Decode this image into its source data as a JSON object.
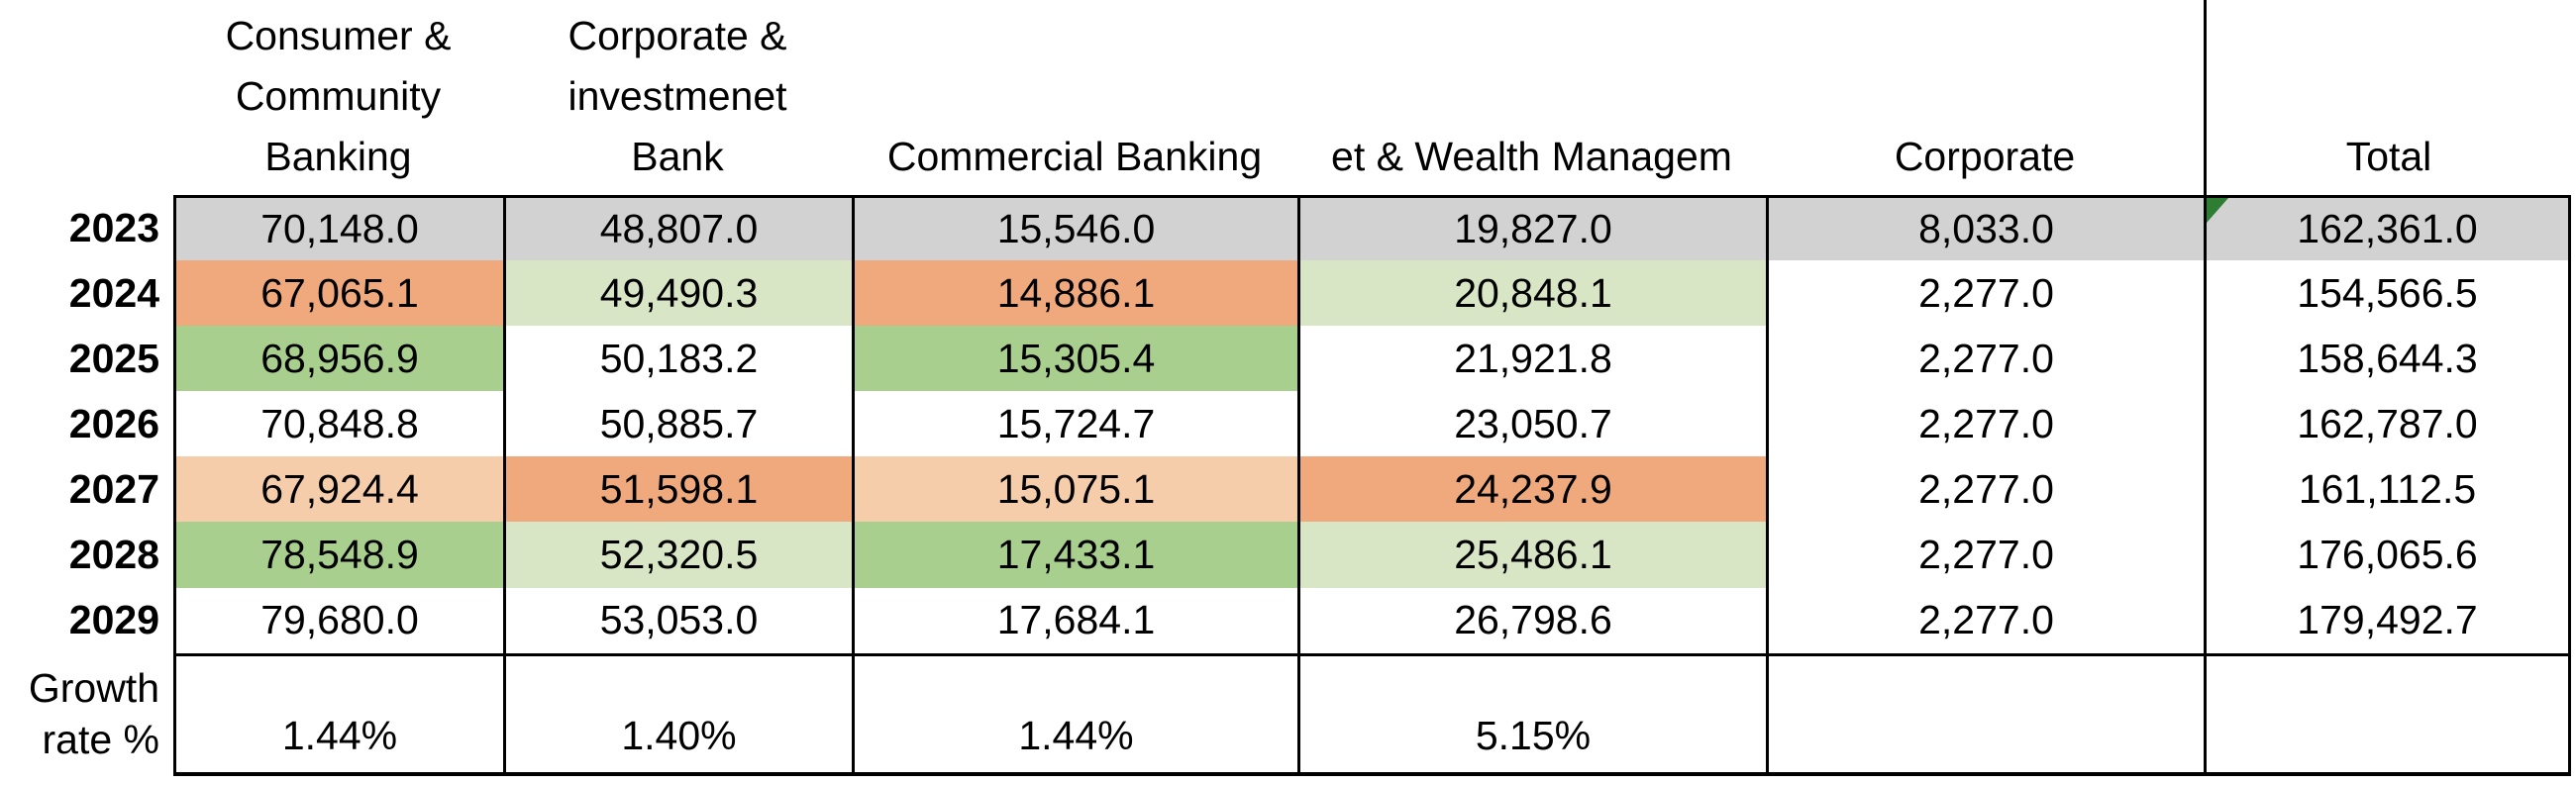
{
  "palette": {
    "gray": "#d2d2d2",
    "orange": "#efa97c",
    "peach": "#f5cdab",
    "green": "#a8cf8d",
    "light_green": "#d8e6c6",
    "flag_green": "#2e7d32",
    "border_black": "#000000"
  },
  "header": {
    "columns": [
      {
        "id": "ccb",
        "lines": [
          "Consumer &",
          "Community",
          "Banking"
        ]
      },
      {
        "id": "cib",
        "lines": [
          "Corporate &",
          "investmenet",
          "Bank"
        ]
      },
      {
        "id": "commercial",
        "lines": [
          "Commercial Banking"
        ]
      },
      {
        "id": "awm",
        "lines": [
          "et & Wealth Managem"
        ]
      },
      {
        "id": "corporate",
        "lines": [
          "Corporate"
        ]
      },
      {
        "id": "total",
        "lines": [
          "Total"
        ]
      }
    ]
  },
  "rows": [
    {
      "label": "2023",
      "values": [
        "70,148.0",
        "48,807.0",
        "15,546.0",
        "19,827.0",
        "8,033.0",
        "162,361.0"
      ],
      "fills": [
        "gray",
        "gray",
        "gray",
        "gray",
        "gray",
        "gray"
      ],
      "flag_col": 5
    },
    {
      "label": "2024",
      "values": [
        "67,065.1",
        "49,490.3",
        "14,886.1",
        "20,848.1",
        "2,277.0",
        "154,566.5"
      ],
      "fills": [
        "orange",
        "light_green",
        "orange",
        "light_green",
        "none",
        "none"
      ]
    },
    {
      "label": "2025",
      "values": [
        "68,956.9",
        "50,183.2",
        "15,305.4",
        "21,921.8",
        "2,277.0",
        "158,644.3"
      ],
      "fills": [
        "green",
        "none",
        "green",
        "none",
        "none",
        "none"
      ]
    },
    {
      "label": "2026",
      "values": [
        "70,848.8",
        "50,885.7",
        "15,724.7",
        "23,050.7",
        "2,277.0",
        "162,787.0"
      ],
      "fills": [
        "none",
        "none",
        "none",
        "none",
        "none",
        "none"
      ]
    },
    {
      "label": "2027",
      "values": [
        "67,924.4",
        "51,598.1",
        "15,075.1",
        "24,237.9",
        "2,277.0",
        "161,112.5"
      ],
      "fills": [
        "peach",
        "orange",
        "peach",
        "orange",
        "none",
        "none"
      ]
    },
    {
      "label": "2028",
      "values": [
        "78,548.9",
        "52,320.5",
        "17,433.1",
        "25,486.1",
        "2,277.0",
        "176,065.6"
      ],
      "fills": [
        "green",
        "light_green",
        "green",
        "light_green",
        "none",
        "none"
      ]
    },
    {
      "label": "2029",
      "values": [
        "79,680.0",
        "53,053.0",
        "17,684.1",
        "26,798.6",
        "2,277.0",
        "179,492.7"
      ],
      "fills": [
        "none",
        "none",
        "none",
        "none",
        "none",
        "none"
      ]
    }
  ],
  "growth": {
    "label_lines": [
      "Growth",
      "rate %"
    ],
    "values": [
      "1.44%",
      "1.40%",
      "1.44%",
      "5.15%",
      "",
      ""
    ]
  }
}
